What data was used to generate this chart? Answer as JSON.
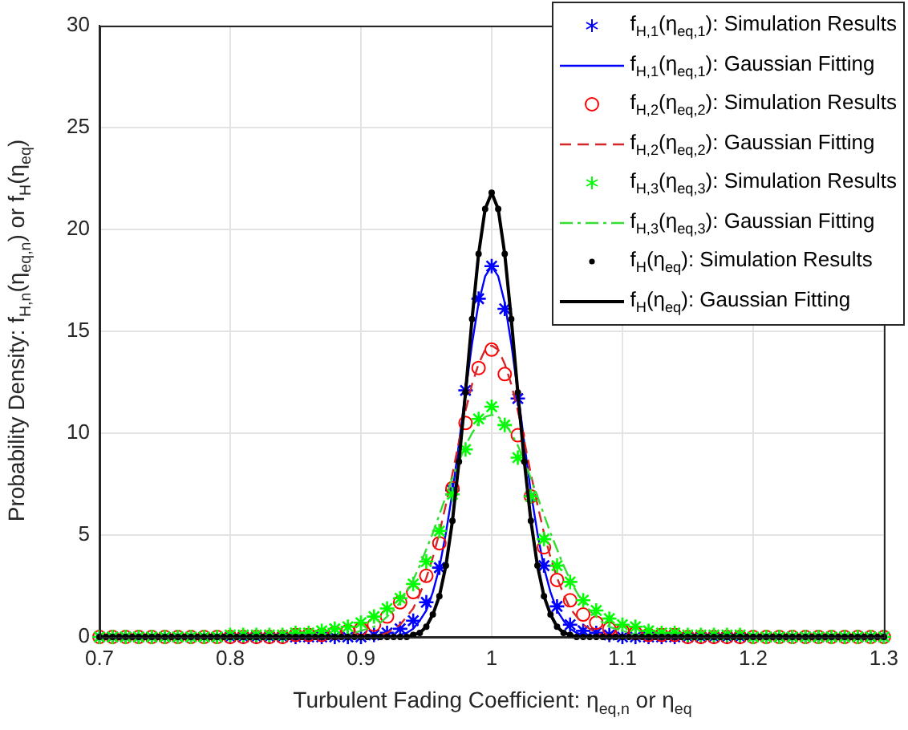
{
  "chart_data": {
    "type": "scatter",
    "xlabel": "Turbulent Fading Coefficient: η$_{eq,n}$ or η$_{eq}$",
    "ylabel": "Probability Density: f$_{H,n}$(η$_{eq,n}$) or f$_{H}$(η$_{eq}$)",
    "xlim": [
      0.7,
      1.3
    ],
    "xticks": [
      0.7,
      0.8,
      0.9,
      1,
      1.1,
      1.2,
      1.3
    ],
    "ylim": [
      0,
      30
    ],
    "yticks": [
      0,
      5,
      10,
      15,
      20,
      25,
      30
    ],
    "grid": true,
    "legend": "top right",
    "x": [
      0.7,
      0.71,
      0.72,
      0.73,
      0.74,
      0.75,
      0.76,
      0.77,
      0.78,
      0.79,
      0.8,
      0.81,
      0.82,
      0.83,
      0.84,
      0.85,
      0.86,
      0.87,
      0.88,
      0.89,
      0.9,
      0.91,
      0.92,
      0.93,
      0.94,
      0.95,
      0.96,
      0.97,
      0.98,
      0.99,
      1,
      1.01,
      1.02,
      1.03,
      1.04,
      1.05,
      1.06,
      1.07,
      1.08,
      1.09,
      1.1,
      1.11,
      1.12,
      1.13,
      1.14,
      1.15,
      1.16,
      1.17,
      1.18,
      1.19,
      1.2,
      1.21,
      1.22,
      1.23,
      1.24,
      1.25,
      1.26,
      1.27,
      1.28,
      1.29,
      1.3
    ],
    "series": [
      {
        "name": "f$_{H,1}$(η$_{eq,1}$): Simulation Results",
        "type": "scatter",
        "marker": "cross",
        "color": "#0000ff",
        "values": [
          0,
          0,
          0,
          0,
          0,
          0,
          0,
          0,
          0,
          0,
          0,
          0,
          0,
          0,
          0,
          0,
          0,
          0,
          0,
          0,
          0,
          0.1,
          0.2,
          0.4,
          0.8,
          1.7,
          3.4,
          7.2,
          12.1,
          16.6,
          18.2,
          16.1,
          11.7,
          6.9,
          3.5,
          1.5,
          0.6,
          0.3,
          0.2,
          0.1,
          0,
          0,
          0,
          0,
          0,
          0,
          0,
          0,
          0,
          0,
          0,
          0,
          0,
          0,
          0,
          0,
          0,
          0,
          0,
          0,
          0
        ]
      },
      {
        "name": "f$_{H,1}$(η$_{eq,1}$): Gaussian Fitting",
        "type": "line",
        "marker": "none",
        "line_style": "solid",
        "color": "#0000ff",
        "x": [
          0.7,
          0.85,
          0.855,
          0.86,
          0.865,
          0.87,
          0.875,
          0.88,
          0.885,
          0.89,
          0.895,
          0.9,
          0.905,
          0.91,
          0.915,
          0.92,
          0.925,
          0.93,
          0.935,
          0.94,
          0.945,
          0.95,
          0.955,
          0.96,
          0.965,
          0.97,
          0.975,
          0.98,
          0.985,
          0.99,
          0.995,
          1,
          1.005,
          1.01,
          1.015,
          1.02,
          1.025,
          1.03,
          1.035,
          1.04,
          1.045,
          1.05,
          1.055,
          1.06,
          1.065,
          1.07,
          1.075,
          1.08,
          1.085,
          1.09,
          1.095,
          1.1,
          1.105,
          1.11,
          1.115,
          1.12,
          1.125,
          1.13,
          1.135,
          1.14,
          1.145,
          1.15,
          1.3
        ],
        "values": [
          0,
          0,
          0,
          0,
          0,
          0,
          0,
          0,
          0,
          0,
          0,
          0,
          0,
          0,
          0,
          0,
          0,
          0.1,
          0.2,
          0.4,
          0.8,
          1.3,
          2.2,
          3.4,
          5.1,
          7.1,
          9.5,
          12.0,
          14.4,
          16.4,
          17.7,
          18.2,
          17.7,
          16.4,
          14.4,
          12.0,
          9.5,
          7.1,
          5.1,
          3.4,
          2.2,
          1.3,
          0.8,
          0.4,
          0.2,
          0.1,
          0,
          0,
          0,
          0,
          0,
          0,
          0,
          0,
          0,
          0,
          0,
          0,
          0,
          0,
          0,
          0,
          0
        ]
      },
      {
        "name": "f$_{H,2}$(η$_{eq,2}$): Simulation Results",
        "type": "scatter",
        "marker": "circle",
        "color": "#ff0000",
        "values": [
          0,
          0,
          0,
          0,
          0,
          0,
          0,
          0,
          0,
          0,
          0,
          0,
          0,
          0,
          0,
          0.1,
          0.1,
          0.1,
          0.2,
          0.3,
          0.4,
          0.6,
          1.0,
          1.7,
          2.2,
          3.0,
          4.6,
          7.3,
          10.5,
          13.2,
          14.1,
          12.9,
          9.9,
          6.9,
          4.4,
          2.8,
          1.8,
          1.1,
          0.7,
          0.4,
          0.3,
          0.2,
          0.1,
          0.1,
          0.1,
          0,
          0,
          0,
          0,
          0,
          0,
          0,
          0,
          0,
          0,
          0,
          0,
          0,
          0,
          0,
          0
        ]
      },
      {
        "name": "f$_{H,2}$(η$_{eq,2}$): Gaussian Fitting",
        "type": "line",
        "marker": "none",
        "line_style": "dashed",
        "color": "#d62728",
        "x": [
          0.7,
          0.85,
          0.855,
          0.86,
          0.865,
          0.87,
          0.875,
          0.88,
          0.885,
          0.89,
          0.895,
          0.9,
          0.905,
          0.91,
          0.915,
          0.92,
          0.925,
          0.93,
          0.935,
          0.94,
          0.945,
          0.95,
          0.955,
          0.96,
          0.965,
          0.97,
          0.975,
          0.98,
          0.985,
          0.99,
          0.995,
          1,
          1.005,
          1.01,
          1.015,
          1.02,
          1.025,
          1.03,
          1.035,
          1.04,
          1.045,
          1.05,
          1.055,
          1.06,
          1.065,
          1.07,
          1.075,
          1.08,
          1.085,
          1.09,
          1.095,
          1.1,
          1.105,
          1.11,
          1.115,
          1.12,
          1.125,
          1.13,
          1.135,
          1.14,
          1.145,
          1.15,
          1.3
        ],
        "values": [
          0,
          0,
          0,
          0,
          0,
          0,
          0,
          0,
          0,
          0,
          0,
          0,
          0,
          0.1,
          0.1,
          0.2,
          0.4,
          0.6,
          1.0,
          1.4,
          2.1,
          2.9,
          3.9,
          5.1,
          6.5,
          8.0,
          9.6,
          11.1,
          12.4,
          13.4,
          14.1,
          14.3,
          14.1,
          13.4,
          12.4,
          11.1,
          9.6,
          8.0,
          6.5,
          5.1,
          3.9,
          2.9,
          2.1,
          1.4,
          1.0,
          0.6,
          0.4,
          0.2,
          0.1,
          0.1,
          0,
          0,
          0,
          0,
          0,
          0,
          0,
          0,
          0,
          0,
          0,
          0,
          0
        ]
      },
      {
        "name": "f$_{H,3}$(η$_{eq,3}$): Simulation Results",
        "type": "scatter",
        "marker": "cross",
        "color": "#00ff00",
        "values": [
          0,
          0,
          0,
          0,
          0,
          0,
          0,
          0,
          0,
          0,
          0.1,
          0.1,
          0.1,
          0.1,
          0.1,
          0.2,
          0.2,
          0.3,
          0.4,
          0.5,
          0.7,
          1.0,
          1.4,
          1.9,
          2.6,
          3.7,
          5.2,
          7.0,
          9.2,
          10.7,
          11.3,
          10.4,
          8.8,
          6.9,
          4.8,
          3.5,
          2.7,
          1.8,
          1.3,
          0.9,
          0.6,
          0.5,
          0.3,
          0.2,
          0.2,
          0.1,
          0.1,
          0.1,
          0.1,
          0.1,
          0,
          0,
          0,
          0,
          0,
          0,
          0,
          0,
          0,
          0,
          0
        ]
      },
      {
        "name": "f$_{H,3}$(η$_{eq,3}$): Gaussian Fitting",
        "type": "line",
        "marker": "none",
        "line_style": "dashdot",
        "color": "#33dd33",
        "x": [
          0.7,
          0.85,
          0.855,
          0.86,
          0.865,
          0.87,
          0.875,
          0.88,
          0.885,
          0.89,
          0.895,
          0.9,
          0.905,
          0.91,
          0.915,
          0.92,
          0.925,
          0.93,
          0.935,
          0.94,
          0.945,
          0.95,
          0.955,
          0.96,
          0.965,
          0.97,
          0.975,
          0.98,
          0.985,
          0.99,
          0.995,
          1,
          1.005,
          1.01,
          1.015,
          1.02,
          1.025,
          1.03,
          1.035,
          1.04,
          1.045,
          1.05,
          1.055,
          1.06,
          1.065,
          1.07,
          1.075,
          1.08,
          1.085,
          1.09,
          1.095,
          1.1,
          1.105,
          1.11,
          1.115,
          1.12,
          1.125,
          1.13,
          1.135,
          1.14,
          1.145,
          1.15,
          1.3
        ],
        "values": [
          0,
          0,
          0,
          0,
          0,
          0,
          0,
          0.1,
          0.1,
          0.1,
          0.2,
          0.3,
          0.4,
          0.5,
          0.7,
          1.0,
          1.3,
          1.7,
          2.2,
          2.8,
          3.5,
          4.3,
          5.1,
          6.0,
          6.9,
          7.8,
          8.6,
          9.4,
          10.0,
          10.5,
          10.8,
          10.9,
          10.8,
          10.5,
          10.0,
          9.4,
          8.6,
          7.8,
          6.9,
          6.0,
          5.1,
          4.3,
          3.5,
          2.8,
          2.2,
          1.7,
          1.3,
          1.0,
          0.7,
          0.5,
          0.4,
          0.3,
          0.2,
          0.1,
          0.1,
          0.1,
          0,
          0,
          0,
          0,
          0,
          0,
          0
        ]
      },
      {
        "name": "f$_{H}$(η$_{eq}$): Simulation Results",
        "type": "scatter",
        "marker": "circle",
        "color": "#000000",
        "x": [
          0.7,
          0.705,
          0.71,
          0.715,
          0.72,
          0.725,
          0.73,
          0.735,
          0.74,
          0.745,
          0.75,
          0.755,
          0.76,
          0.765,
          0.77,
          0.775,
          0.78,
          0.785,
          0.79,
          0.795,
          0.8,
          0.805,
          0.81,
          0.815,
          0.82,
          0.825,
          0.83,
          0.835,
          0.84,
          0.845,
          0.85,
          0.855,
          0.86,
          0.865,
          0.87,
          0.875,
          0.88,
          0.885,
          0.89,
          0.895,
          0.9,
          0.905,
          0.91,
          0.915,
          0.92,
          0.925,
          0.93,
          0.935,
          0.94,
          0.945,
          0.95,
          0.955,
          0.96,
          0.965,
          0.97,
          0.975,
          0.98,
          0.985,
          0.99,
          0.995,
          1,
          1.005,
          1.01,
          1.015,
          1.02,
          1.025,
          1.03,
          1.035,
          1.04,
          1.045,
          1.05,
          1.055,
          1.06,
          1.065,
          1.07,
          1.075,
          1.08,
          1.085,
          1.09,
          1.095,
          1.1,
          1.105,
          1.11,
          1.115,
          1.12,
          1.125,
          1.13,
          1.135,
          1.14,
          1.145,
          1.15,
          1.155,
          1.16,
          1.165,
          1.17,
          1.175,
          1.18,
          1.185,
          1.19,
          1.195,
          1.2,
          1.205,
          1.21,
          1.215,
          1.22,
          1.225,
          1.23,
          1.235,
          1.24,
          1.245,
          1.25,
          1.255,
          1.26,
          1.265,
          1.27,
          1.275,
          1.28,
          1.285,
          1.29,
          1.295,
          1.3
        ],
        "values": [
          0,
          0,
          0,
          0,
          0,
          0,
          0,
          0,
          0,
          0,
          0,
          0,
          0,
          0,
          0,
          0,
          0,
          0,
          0,
          0,
          0,
          0,
          0,
          0,
          0,
          0,
          0,
          0,
          0,
          0,
          0,
          0,
          0,
          0,
          0,
          0,
          0,
          0,
          0,
          0,
          0,
          0,
          0,
          0,
          0,
          0,
          0,
          0,
          0.1,
          0.2,
          0.5,
          1.1,
          2.0,
          3.5,
          5.7,
          8.6,
          12.0,
          15.6,
          18.8,
          21.0,
          21.8,
          21.0,
          18.8,
          15.6,
          12.0,
          8.6,
          5.7,
          3.5,
          2.0,
          1.1,
          0.5,
          0.2,
          0.1,
          0,
          0,
          0,
          0,
          0,
          0,
          0,
          0,
          0,
          0,
          0,
          0,
          0,
          0,
          0,
          0,
          0,
          0,
          0,
          0,
          0,
          0,
          0,
          0,
          0,
          0,
          0,
          0,
          0,
          0,
          0,
          0,
          0,
          0,
          0,
          0,
          0,
          0,
          0,
          0,
          0,
          0,
          0,
          0,
          0,
          0,
          0,
          0
        ]
      },
      {
        "name": "f$_{H}$(η$_{eq}$): Gaussian Fitting",
        "type": "line",
        "marker": "none",
        "line_style": "solid",
        "color": "#000000",
        "x": [
          0.7,
          0.85,
          0.855,
          0.86,
          0.865,
          0.87,
          0.875,
          0.88,
          0.885,
          0.89,
          0.895,
          0.9,
          0.905,
          0.91,
          0.915,
          0.92,
          0.925,
          0.93,
          0.935,
          0.94,
          0.945,
          0.95,
          0.955,
          0.96,
          0.965,
          0.97,
          0.975,
          0.98,
          0.985,
          0.99,
          0.995,
          1,
          1.005,
          1.01,
          1.015,
          1.02,
          1.025,
          1.03,
          1.035,
          1.04,
          1.045,
          1.05,
          1.055,
          1.06,
          1.065,
          1.07,
          1.075,
          1.08,
          1.085,
          1.09,
          1.095,
          1.1,
          1.105,
          1.11,
          1.115,
          1.12,
          1.125,
          1.13,
          1.135,
          1.14,
          1.145,
          1.15,
          1.3
        ],
        "values": [
          0,
          0,
          0,
          0,
          0,
          0,
          0,
          0,
          0,
          0,
          0,
          0,
          0,
          0,
          0,
          0,
          0,
          0,
          0,
          0.1,
          0.2,
          0.5,
          1.1,
          2.0,
          3.5,
          5.7,
          8.6,
          12.0,
          15.6,
          18.8,
          21.0,
          21.8,
          21.0,
          18.8,
          15.6,
          12.0,
          8.6,
          5.7,
          3.5,
          2.0,
          1.1,
          0.5,
          0.2,
          0.1,
          0,
          0,
          0,
          0,
          0,
          0,
          0,
          0,
          0,
          0,
          0,
          0,
          0,
          0,
          0,
          0,
          0,
          0,
          0
        ]
      }
    ]
  }
}
